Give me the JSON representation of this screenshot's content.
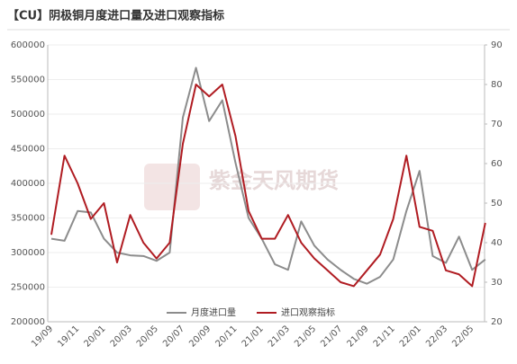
{
  "chart_data": {
    "type": "line",
    "title": "【CU】阴极铜月度进口量及进口观察指标",
    "watermark": "紫金天风期货",
    "categories": [
      "19/09",
      null,
      "19/11",
      null,
      "20/01",
      null,
      "20/03",
      null,
      "20/05",
      null,
      "20/07",
      null,
      "20/09",
      null,
      "20/11",
      null,
      "21/01",
      null,
      "21/03",
      null,
      "21/05",
      null,
      "21/07",
      null,
      "21/09",
      null,
      "21/11",
      null,
      "22/01",
      null,
      "22/03",
      null,
      "22/05",
      null
    ],
    "series": [
      {
        "name": "月度进口量",
        "color": "#8c8c8c",
        "axis": "y",
        "values": [
          320000,
          317000,
          360000,
          358000,
          320000,
          300000,
          296000,
          295000,
          288000,
          300000,
          495000,
          567000,
          490000,
          520000,
          430000,
          350000,
          320000,
          283000,
          275000,
          345000,
          310000,
          290000,
          275000,
          262000,
          255000,
          265000,
          290000,
          360000,
          418000,
          295000,
          285000,
          323000,
          275000,
          290000
        ]
      },
      {
        "name": "进口观察指标",
        "color": "#b01c22",
        "axis": "y2",
        "values": [
          42,
          62,
          55,
          46,
          50,
          35,
          47,
          40,
          36,
          40,
          65,
          80,
          77,
          80,
          67,
          48,
          41,
          41,
          47,
          40,
          36,
          33,
          30,
          29,
          33,
          37,
          46,
          62,
          44,
          43,
          33,
          32,
          29,
          45
        ]
      }
    ],
    "ylim": [
      200000,
      600000
    ],
    "yticks": [
      200000,
      250000,
      300000,
      350000,
      400000,
      450000,
      500000,
      550000,
      600000
    ],
    "y2lim": [
      20,
      90
    ],
    "y2ticks": [
      20,
      30,
      40,
      50,
      60,
      70,
      80,
      90
    ],
    "grid": true,
    "legend": "bottom"
  }
}
